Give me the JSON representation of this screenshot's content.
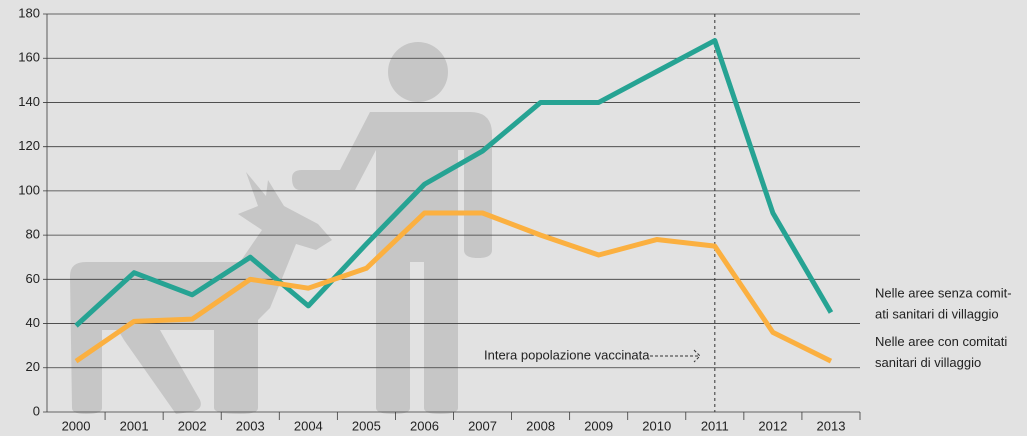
{
  "chart_data": {
    "type": "line",
    "categories": [
      "2000",
      "2001",
      "2002",
      "2003",
      "2004",
      "2005",
      "2006",
      "2007",
      "2008",
      "2009",
      "2010",
      "2011",
      "2012",
      "2013"
    ],
    "series": [
      {
        "name": "Nelle aree senza comit-\nati sanitari di villaggio",
        "color": "#26a393",
        "values": [
          39,
          63,
          53,
          70,
          48,
          76,
          103,
          118,
          140,
          140,
          154,
          168,
          90,
          45
        ]
      },
      {
        "name": "Nelle aree con comitati\nsanitari di villaggio",
        "color": "#fbb040",
        "values": [
          23,
          41,
          42,
          60,
          56,
          65,
          90,
          90,
          80,
          71,
          78,
          75,
          36,
          23
        ]
      }
    ],
    "ylim": [
      0,
      180
    ],
    "yticks": [
      0,
      20,
      40,
      60,
      80,
      100,
      120,
      140,
      160,
      180
    ],
    "grid": true,
    "annotation": "Intera popolazione vaccinata",
    "marker_category": "2011"
  }
}
